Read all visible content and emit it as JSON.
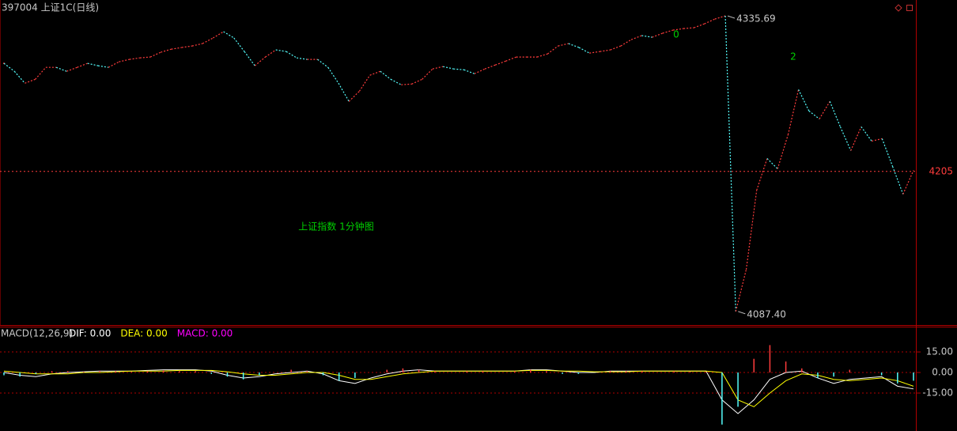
{
  "header": {
    "title": "397004 上证1C(日线)"
  },
  "chart_data": [
    {
      "type": "line",
      "values": [
        4295.8,
        4289.1,
        4279.1,
        4282.4,
        4292.4,
        4292.4,
        4289.1,
        4292.4,
        4295.8,
        4293.8,
        4292.4,
        4297.1,
        4299.1,
        4300.4,
        4301.1,
        4305.1,
        4307.7,
        4309.1,
        4310.4,
        4312.4,
        4317.1,
        4322.4,
        4317.1,
        4305.7,
        4293.8,
        4301.1,
        4307.1,
        4305.7,
        4300.4,
        4299.1,
        4299.1,
        4292.4,
        4279.1,
        4263.8,
        4272.4,
        4285.8,
        4289.1,
        4282.4,
        4277.8,
        4278.4,
        4282.4,
        4291.1,
        4293.1,
        4291.1,
        4290.4,
        4287.1,
        4291.1,
        4294.4,
        4297.7,
        4301.1,
        4301.1,
        4301.1,
        4303.7,
        4310.4,
        4312.4,
        4309.1,
        4304.4,
        4305.7,
        4307.1,
        4310.4,
        4315.7,
        4319.1,
        4317.7,
        4321.1,
        4323.7,
        4325.0,
        4325.7,
        4329.0,
        4333.0,
        4335.69,
        4087.4,
        4122.6,
        4189.2,
        4215.9,
        4207.2,
        4235.8,
        4273.8,
        4255.8,
        4249.1,
        4263.8,
        4242.5,
        4222.5,
        4242.5,
        4230.5,
        4232.5,
        4209.2,
        4185.9,
        4205.9
      ],
      "value_labels": [
        null,
        null,
        null,
        null,
        null,
        null,
        null,
        null,
        null,
        null,
        null,
        null,
        null,
        null,
        null,
        null,
        null,
        null,
        null,
        null,
        null,
        null,
        null,
        null,
        null,
        null,
        null,
        null,
        null,
        null,
        null,
        null,
        null,
        null,
        null,
        null,
        null,
        null,
        null,
        null,
        null,
        null,
        null,
        null,
        null,
        null,
        null,
        null,
        null,
        null,
        null,
        null,
        null,
        null,
        null,
        null,
        null,
        null,
        null,
        null,
        null,
        null,
        null,
        null,
        null,
        null,
        null,
        null,
        null,
        "4335.69",
        "4087.40",
        null,
        null,
        null,
        null,
        null,
        null,
        null,
        null,
        null,
        null,
        null,
        null,
        null,
        null,
        null,
        null,
        null
      ],
      "up_color": "#ff3c3c",
      "down_color": "#54fcfc",
      "ylim": [
        4076,
        4349
      ],
      "yticks": [
        4205
      ],
      "tick_color": "#ff3c3c",
      "annotations": [
        {
          "text": "0",
          "color": "#00d000"
        },
        {
          "text": "2",
          "color": "#00d000"
        },
        {
          "text": "上证指数 1分钟图",
          "color": "#00d000"
        }
      ]
    },
    {
      "type": "macd",
      "title": "MACD(12,26,9)",
      "series": [
        {
          "name": "DIF: 0.00",
          "color": "#ffffff",
          "values": [
            0,
            -2,
            -3,
            -1,
            0,
            0.5,
            1,
            1,
            1,
            1.5,
            2,
            2,
            2,
            1,
            -2,
            -4,
            -3,
            -1,
            0,
            1,
            -1,
            -6,
            -8,
            -4,
            -1,
            1,
            2,
            1,
            1,
            1,
            1,
            1,
            1,
            2,
            2,
            1,
            0,
            0,
            1,
            1,
            1,
            1,
            1,
            1,
            1,
            -20,
            -30,
            -20,
            -5,
            0,
            1,
            -4,
            -8,
            -5,
            -4,
            -3,
            -10,
            -12
          ]
        },
        {
          "name": "DEA: 0.00",
          "color": "#ffff00",
          "values": [
            1,
            0,
            -1,
            -1,
            -1,
            0,
            0,
            0.5,
            1,
            1,
            1,
            1.5,
            1.5,
            1.5,
            0.5,
            -1,
            -2,
            -2,
            -1,
            0,
            0,
            -2,
            -5,
            -5,
            -3,
            -1,
            0,
            1,
            1,
            1,
            1,
            1,
            1,
            1.5,
            1.5,
            1,
            1,
            0.5,
            0.5,
            0.5,
            1,
            1,
            1,
            1,
            1,
            0,
            -20,
            -25,
            -15,
            -6,
            -1,
            -2,
            -5,
            -6,
            -5,
            -4,
            -6,
            -10
          ]
        },
        {
          "name": "MACD: 0.00",
          "color": "#ff00ff",
          "up_color": "#ff3c3c",
          "down_color": "#54fcfc",
          "values": [
            -2,
            -3,
            -1,
            1,
            1,
            0.5,
            1,
            1,
            0.5,
            1,
            1.5,
            1,
            1,
            -1,
            -3,
            -5,
            -2,
            0,
            2,
            1,
            -2,
            -6,
            -4,
            0,
            2,
            3,
            2,
            1,
            0,
            1,
            1,
            0,
            1,
            2,
            1,
            -1,
            -1,
            0,
            1,
            1,
            1,
            0,
            1,
            0.5,
            0.5,
            -38,
            -25,
            10,
            20,
            8,
            3,
            -4,
            -3,
            2,
            0,
            -2,
            -8,
            -6
          ]
        }
      ],
      "ylim": [
        -42.7,
        33.5
      ],
      "yticks": [
        {
          "value": 15,
          "label": "15.00"
        },
        {
          "value": 0,
          "label": "0.00"
        },
        {
          "value": -15,
          "label": "-15.00"
        }
      ]
    }
  ]
}
